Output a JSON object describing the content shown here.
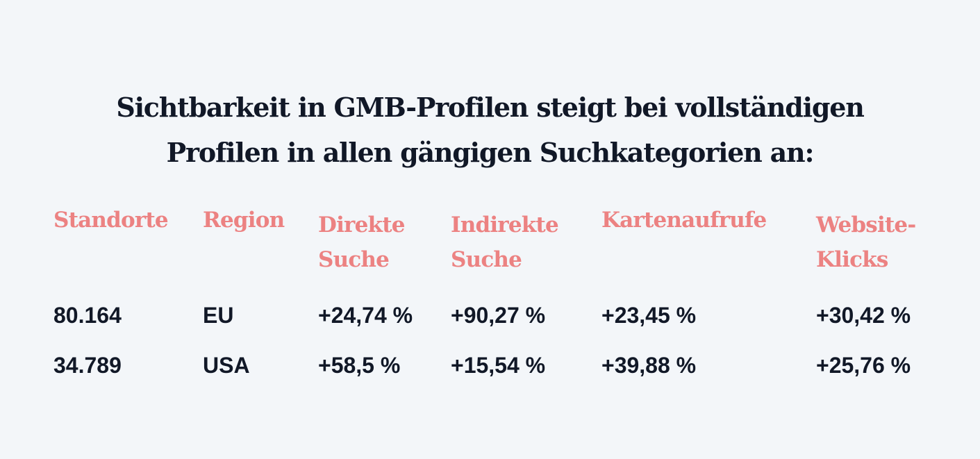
{
  "chart_data": {
    "type": "table",
    "title_lines": [
      "Sichtbarkeit in GMB-Profilen steigt bei vollständigen",
      "Profilen in allen gängigen Suchkategorien an:"
    ],
    "columns": [
      {
        "lines": [
          "Standorte"
        ]
      },
      {
        "lines": [
          "Region"
        ]
      },
      {
        "lines": [
          "Direkte",
          "Suche"
        ]
      },
      {
        "lines": [
          "Indirekte",
          "Suche"
        ]
      },
      {
        "lines": [
          "Kartenaufrufe"
        ]
      },
      {
        "lines": [
          "Website-",
          "Klicks"
        ]
      }
    ],
    "rows": [
      [
        "80.164",
        "EU",
        "+24,74 %",
        "+90,27 %",
        "+23,45 %",
        "+30,42 %"
      ],
      [
        "34.789",
        "USA",
        "+58,5 %",
        "+15,54 %",
        "+39,88 %",
        "+25,76 %"
      ]
    ],
    "colors": {
      "background": "#f3f6f9",
      "title": "#111827",
      "header": "#ec8282",
      "cell": "#111827"
    }
  }
}
